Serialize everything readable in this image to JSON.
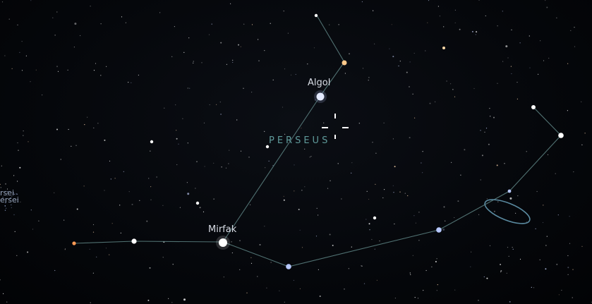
{
  "constellation": {
    "name": "PERSEUS"
  },
  "star_labels": {
    "algol": "Algol",
    "mirfak": "Mirfak"
  },
  "edge_labels": {
    "line1": "rsei",
    "line2": "ersei"
  },
  "colors": {
    "constellation_line": "#5e8484",
    "constellation_label": "#5f9a9a",
    "star_white": "#ffffff",
    "star_blue": "#b7c8ff",
    "star_orange": "#ffb36b",
    "reticle": "#ffffff",
    "galaxy_marker": "#5a8aa0"
  },
  "icons": {
    "reticle": "selection-reticle-icon",
    "galaxy": "galaxy-ellipse-icon"
  }
}
